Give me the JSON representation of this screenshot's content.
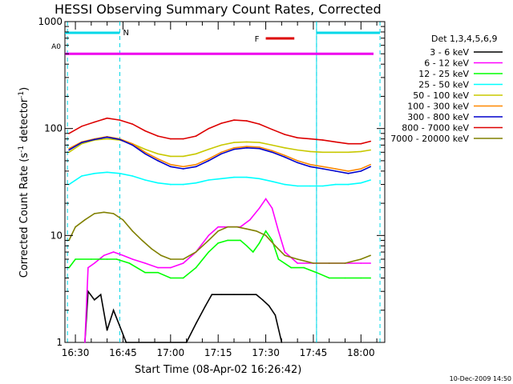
{
  "chart_data": {
    "type": "line",
    "title": "HESSI Observing Summary Count Rates, Corrected",
    "xlabel": "Start Time (08-Apr-02 16:26:42)",
    "ylabel": "Corrected Count Rate (s⁻¹ detector⁻¹)",
    "ylabel_main": "Corrected Count Rate (s",
    "ylabel_sup1": "-1",
    "ylabel_mid": " detector",
    "ylabel_sup2": "-1",
    "ylabel_end": ")",
    "y_scale": "log",
    "ylim": [
      1,
      1000
    ],
    "xlim": [
      "16:26:42",
      "18:07:30"
    ],
    "x_ticks": [
      "16:30",
      "16:45",
      "17:00",
      "17:15",
      "17:30",
      "17:45",
      "18:00"
    ],
    "x_tick_minutes": [
      990,
      1005,
      1020,
      1035,
      1050,
      1065,
      1080
    ],
    "y_ticks": [
      "1",
      "10",
      "100",
      "1000"
    ],
    "y_tick_values": [
      1,
      10,
      100,
      1000
    ],
    "footer_stamp": "10-Dec-2009 14:50",
    "legend": {
      "title": "Det 1,3,4,5,6,9",
      "placement": "right"
    },
    "series": [
      {
        "name": "3 - 6 keV",
        "color": "#000000",
        "points": [
          [
            993,
            1
          ],
          [
            994,
            3
          ],
          [
            996,
            2.5
          ],
          [
            998,
            2.8
          ],
          [
            1000,
            1.3
          ],
          [
            1002,
            2
          ],
          [
            1006,
            1
          ],
          [
            1025,
            1
          ],
          [
            1028,
            1.5
          ],
          [
            1031,
            2.2
          ],
          [
            1033,
            2.8
          ],
          [
            1036,
            2.8
          ],
          [
            1040,
            2.8
          ],
          [
            1044,
            2.8
          ],
          [
            1047,
            2.8
          ],
          [
            1049,
            2.5
          ],
          [
            1051,
            2.2
          ],
          [
            1053,
            1.8
          ],
          [
            1055,
            1
          ]
        ]
      },
      {
        "name": "6 - 12 keV",
        "color": "#ff00ff",
        "points": [
          [
            993,
            1
          ],
          [
            994,
            5
          ],
          [
            996,
            5.5
          ],
          [
            999,
            6.5
          ],
          [
            1002,
            7
          ],
          [
            1005,
            6.5
          ],
          [
            1008,
            6
          ],
          [
            1012,
            5.5
          ],
          [
            1016,
            5
          ],
          [
            1020,
            5
          ],
          [
            1024,
            5.5
          ],
          [
            1028,
            7
          ],
          [
            1032,
            10
          ],
          [
            1035,
            12
          ],
          [
            1038,
            12
          ],
          [
            1042,
            12
          ],
          [
            1045,
            14
          ],
          [
            1048,
            18
          ],
          [
            1050,
            22
          ],
          [
            1052,
            18
          ],
          [
            1054,
            11
          ],
          [
            1056,
            7
          ],
          [
            1060,
            5.5
          ],
          [
            1065,
            5.5
          ],
          [
            1070,
            5.5
          ],
          [
            1075,
            5.5
          ],
          [
            1080,
            5.5
          ],
          [
            1083,
            5.5
          ]
        ]
      },
      {
        "name": "12 - 25 keV",
        "color": "#00ff00",
        "points": [
          [
            988,
            5
          ],
          [
            990,
            6
          ],
          [
            995,
            6
          ],
          [
            1000,
            6
          ],
          [
            1003,
            6
          ],
          [
            1007,
            5.5
          ],
          [
            1012,
            4.5
          ],
          [
            1016,
            4.5
          ],
          [
            1020,
            4
          ],
          [
            1024,
            4
          ],
          [
            1028,
            5
          ],
          [
            1032,
            7
          ],
          [
            1035,
            8.5
          ],
          [
            1038,
            9
          ],
          [
            1042,
            9
          ],
          [
            1044,
            8
          ],
          [
            1046,
            7
          ],
          [
            1048,
            8.5
          ],
          [
            1050,
            11
          ],
          [
            1052,
            9
          ],
          [
            1054,
            6
          ],
          [
            1058,
            5
          ],
          [
            1062,
            5
          ],
          [
            1066,
            4.5
          ],
          [
            1070,
            4
          ],
          [
            1075,
            4
          ],
          [
            1080,
            4
          ],
          [
            1083,
            4
          ]
        ]
      },
      {
        "name": "25 - 50 keV",
        "color": "#00ffff",
        "points": [
          [
            988,
            30
          ],
          [
            992,
            36
          ],
          [
            996,
            38
          ],
          [
            1000,
            39
          ],
          [
            1004,
            38
          ],
          [
            1008,
            36
          ],
          [
            1012,
            33
          ],
          [
            1016,
            31
          ],
          [
            1020,
            30
          ],
          [
            1024,
            30
          ],
          [
            1028,
            31
          ],
          [
            1032,
            33
          ],
          [
            1036,
            34
          ],
          [
            1040,
            35
          ],
          [
            1044,
            35
          ],
          [
            1048,
            34
          ],
          [
            1052,
            32
          ],
          [
            1056,
            30
          ],
          [
            1060,
            29
          ],
          [
            1064,
            29
          ],
          [
            1068,
            29
          ],
          [
            1072,
            30
          ],
          [
            1076,
            30
          ],
          [
            1080,
            31
          ],
          [
            1083,
            33
          ]
        ]
      },
      {
        "name": "50 - 100 keV",
        "color": "#c8c800",
        "points": [
          [
            988,
            60
          ],
          [
            992,
            72
          ],
          [
            996,
            78
          ],
          [
            1000,
            80
          ],
          [
            1004,
            78
          ],
          [
            1008,
            72
          ],
          [
            1012,
            64
          ],
          [
            1016,
            58
          ],
          [
            1020,
            55
          ],
          [
            1024,
            55
          ],
          [
            1028,
            58
          ],
          [
            1032,
            64
          ],
          [
            1036,
            70
          ],
          [
            1040,
            74
          ],
          [
            1044,
            75
          ],
          [
            1048,
            74
          ],
          [
            1052,
            70
          ],
          [
            1056,
            66
          ],
          [
            1060,
            63
          ],
          [
            1064,
            61
          ],
          [
            1068,
            60
          ],
          [
            1072,
            60
          ],
          [
            1076,
            60
          ],
          [
            1080,
            61
          ],
          [
            1083,
            63
          ]
        ]
      },
      {
        "name": "100 - 300 keV",
        "color": "#ff8800",
        "points": [
          [
            988,
            65
          ],
          [
            992,
            75
          ],
          [
            996,
            80
          ],
          [
            1000,
            84
          ],
          [
            1004,
            80
          ],
          [
            1008,
            72
          ],
          [
            1012,
            60
          ],
          [
            1016,
            52
          ],
          [
            1020,
            46
          ],
          [
            1024,
            44
          ],
          [
            1028,
            46
          ],
          [
            1032,
            52
          ],
          [
            1036,
            60
          ],
          [
            1040,
            66
          ],
          [
            1044,
            68
          ],
          [
            1048,
            67
          ],
          [
            1052,
            62
          ],
          [
            1056,
            56
          ],
          [
            1060,
            50
          ],
          [
            1064,
            46
          ],
          [
            1068,
            44
          ],
          [
            1072,
            42
          ],
          [
            1076,
            40
          ],
          [
            1080,
            42
          ],
          [
            1083,
            46
          ]
        ]
      },
      {
        "name": "300 - 800 keV",
        "color": "#0000cc",
        "points": [
          [
            988,
            63
          ],
          [
            992,
            74
          ],
          [
            996,
            79
          ],
          [
            1000,
            83
          ],
          [
            1004,
            79
          ],
          [
            1008,
            70
          ],
          [
            1012,
            58
          ],
          [
            1016,
            50
          ],
          [
            1020,
            44
          ],
          [
            1024,
            42
          ],
          [
            1028,
            44
          ],
          [
            1032,
            50
          ],
          [
            1036,
            58
          ],
          [
            1040,
            64
          ],
          [
            1044,
            66
          ],
          [
            1048,
            65
          ],
          [
            1052,
            60
          ],
          [
            1056,
            54
          ],
          [
            1060,
            48
          ],
          [
            1064,
            44
          ],
          [
            1068,
            42
          ],
          [
            1072,
            40
          ],
          [
            1076,
            38
          ],
          [
            1080,
            40
          ],
          [
            1083,
            44
          ]
        ]
      },
      {
        "name": "800 - 7000 keV",
        "color": "#dd0000",
        "points": [
          [
            988,
            90
          ],
          [
            992,
            105
          ],
          [
            996,
            115
          ],
          [
            1000,
            125
          ],
          [
            1004,
            120
          ],
          [
            1008,
            110
          ],
          [
            1012,
            95
          ],
          [
            1016,
            85
          ],
          [
            1020,
            80
          ],
          [
            1024,
            80
          ],
          [
            1028,
            85
          ],
          [
            1032,
            100
          ],
          [
            1036,
            112
          ],
          [
            1040,
            120
          ],
          [
            1044,
            118
          ],
          [
            1048,
            110
          ],
          [
            1052,
            98
          ],
          [
            1056,
            88
          ],
          [
            1060,
            82
          ],
          [
            1064,
            80
          ],
          [
            1068,
            78
          ],
          [
            1072,
            75
          ],
          [
            1076,
            72
          ],
          [
            1080,
            72
          ],
          [
            1083,
            76
          ]
        ]
      },
      {
        "name": "7000 - 20000 keV",
        "color": "#808000",
        "points": [
          [
            988,
            9
          ],
          [
            990,
            12
          ],
          [
            993,
            14
          ],
          [
            996,
            16
          ],
          [
            999,
            16.5
          ],
          [
            1002,
            16
          ],
          [
            1005,
            14
          ],
          [
            1008,
            11
          ],
          [
            1011,
            9
          ],
          [
            1014,
            7.5
          ],
          [
            1017,
            6.5
          ],
          [
            1020,
            6
          ],
          [
            1024,
            6
          ],
          [
            1028,
            7
          ],
          [
            1032,
            9
          ],
          [
            1035,
            11
          ],
          [
            1038,
            12
          ],
          [
            1041,
            12
          ],
          [
            1044,
            11.5
          ],
          [
            1047,
            11
          ],
          [
            1050,
            10
          ],
          [
            1053,
            8
          ],
          [
            1056,
            6.5
          ],
          [
            1060,
            6
          ],
          [
            1065,
            5.5
          ],
          [
            1070,
            5.5
          ],
          [
            1075,
            5.5
          ],
          [
            1080,
            6
          ],
          [
            1083,
            6.5
          ]
        ]
      }
    ],
    "annotations": {
      "night_flag_label": "N",
      "flare_flag_label": "F",
      "attenuator_label": "A0",
      "night_intervals": [
        [
          "16:26:42",
          "16:44:00"
        ],
        [
          "17:46:00",
          "18:06:00"
        ]
      ],
      "flare_interval": [
        "17:30:00",
        "17:39:00"
      ],
      "attenuator_level": 500,
      "night_boundaries": [
        "16:27:30",
        "16:44:00",
        "17:46:00",
        "18:06:00"
      ]
    }
  }
}
